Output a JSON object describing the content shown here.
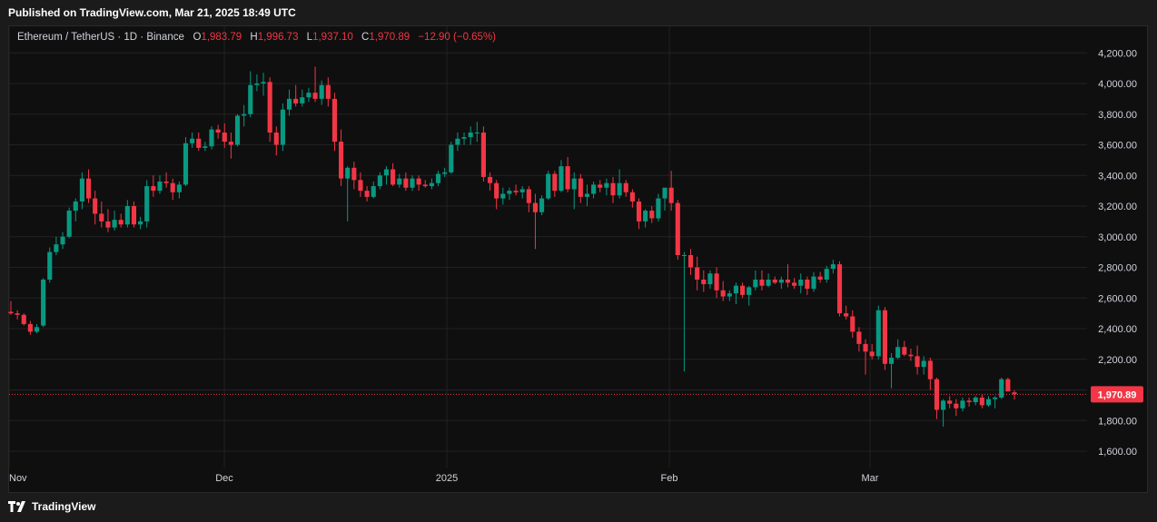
{
  "header": {
    "published": "Published on TradingView.com, Mar 21, 2025 18:49 UTC"
  },
  "legend": {
    "symbol": "Ethereum / TetherUS · 1D · Binance",
    "o_label": "O",
    "o_value": "1,983.79",
    "h_label": "H",
    "h_value": "1,996.73",
    "l_label": "L",
    "l_value": "1,937.10",
    "c_label": "C",
    "c_value": "1,970.89",
    "change": "−12.90 (−0.65%)"
  },
  "footer": {
    "brand": "TradingView"
  },
  "colors": {
    "up": "#089981",
    "down": "#f23645",
    "grid": "#222222",
    "background": "#0f0f0f",
    "price_tag": "#f23645"
  },
  "chart_data": {
    "type": "candlestick",
    "title": "Ethereum / TetherUS · 1D · Binance",
    "y_ticks": [
      "4,200.00",
      "4,000.00",
      "3,800.00",
      "3,600.00",
      "3,400.00",
      "3,200.00",
      "3,000.00",
      "2,800.00",
      "2,600.00",
      "2,400.00",
      "2,200.00",
      "2,000.00",
      "1,800.00",
      "1,600.00"
    ],
    "y_tick_values": [
      4200,
      4000,
      3800,
      3600,
      3400,
      3200,
      3000,
      2800,
      2600,
      2400,
      2200,
      2000,
      1800,
      1600
    ],
    "ylim": [
      1540,
      4300
    ],
    "x_ticks": [
      "Nov",
      "Dec",
      "2025",
      "Feb",
      "Mar"
    ],
    "current_price": 1970.89,
    "current_price_label": "1,970.89",
    "grid": true,
    "candles": [
      {
        "o": 2510,
        "h": 2580,
        "l": 2490,
        "c": 2500
      },
      {
        "o": 2500,
        "h": 2520,
        "l": 2460,
        "c": 2490
      },
      {
        "o": 2490,
        "h": 2500,
        "l": 2420,
        "c": 2430
      },
      {
        "o": 2430,
        "h": 2450,
        "l": 2360,
        "c": 2380
      },
      {
        "o": 2380,
        "h": 2430,
        "l": 2370,
        "c": 2410
      },
      {
        "o": 2420,
        "h": 2730,
        "l": 2410,
        "c": 2720
      },
      {
        "o": 2720,
        "h": 2930,
        "l": 2700,
        "c": 2900
      },
      {
        "o": 2900,
        "h": 3000,
        "l": 2880,
        "c": 2950
      },
      {
        "o": 2950,
        "h": 3030,
        "l": 2920,
        "c": 3000
      },
      {
        "o": 3000,
        "h": 3190,
        "l": 2990,
        "c": 3170
      },
      {
        "o": 3170,
        "h": 3250,
        "l": 3100,
        "c": 3230
      },
      {
        "o": 3230,
        "h": 3420,
        "l": 3180,
        "c": 3380
      },
      {
        "o": 3380,
        "h": 3440,
        "l": 3220,
        "c": 3250
      },
      {
        "o": 3250,
        "h": 3300,
        "l": 3080,
        "c": 3150
      },
      {
        "o": 3150,
        "h": 3230,
        "l": 3060,
        "c": 3100
      },
      {
        "o": 3100,
        "h": 3180,
        "l": 3030,
        "c": 3060
      },
      {
        "o": 3060,
        "h": 3170,
        "l": 3040,
        "c": 3110
      },
      {
        "o": 3110,
        "h": 3150,
        "l": 3060,
        "c": 3080
      },
      {
        "o": 3080,
        "h": 3240,
        "l": 3060,
        "c": 3200
      },
      {
        "o": 3200,
        "h": 3230,
        "l": 3060,
        "c": 3080
      },
      {
        "o": 3080,
        "h": 3130,
        "l": 3050,
        "c": 3100
      },
      {
        "o": 3100,
        "h": 3370,
        "l": 3060,
        "c": 3330
      },
      {
        "o": 3330,
        "h": 3400,
        "l": 3260,
        "c": 3300
      },
      {
        "o": 3300,
        "h": 3400,
        "l": 3280,
        "c": 3360
      },
      {
        "o": 3360,
        "h": 3420,
        "l": 3320,
        "c": 3350
      },
      {
        "o": 3350,
        "h": 3380,
        "l": 3240,
        "c": 3290
      },
      {
        "o": 3290,
        "h": 3360,
        "l": 3250,
        "c": 3340
      },
      {
        "o": 3340,
        "h": 3650,
        "l": 3330,
        "c": 3610
      },
      {
        "o": 3610,
        "h": 3680,
        "l": 3580,
        "c": 3640
      },
      {
        "o": 3640,
        "h": 3680,
        "l": 3560,
        "c": 3580
      },
      {
        "o": 3580,
        "h": 3620,
        "l": 3560,
        "c": 3590
      },
      {
        "o": 3590,
        "h": 3720,
        "l": 3570,
        "c": 3700
      },
      {
        "o": 3700,
        "h": 3730,
        "l": 3640,
        "c": 3680
      },
      {
        "o": 3680,
        "h": 3740,
        "l": 3580,
        "c": 3620
      },
      {
        "o": 3620,
        "h": 3680,
        "l": 3510,
        "c": 3600
      },
      {
        "o": 3600,
        "h": 3800,
        "l": 3590,
        "c": 3790
      },
      {
        "o": 3790,
        "h": 3860,
        "l": 3720,
        "c": 3800
      },
      {
        "o": 3800,
        "h": 4080,
        "l": 3780,
        "c": 3990
      },
      {
        "o": 3990,
        "h": 4060,
        "l": 3950,
        "c": 4000
      },
      {
        "o": 4000,
        "h": 4070,
        "l": 3920,
        "c": 4010
      },
      {
        "o": 4010,
        "h": 4040,
        "l": 3620,
        "c": 3680
      },
      {
        "o": 3680,
        "h": 3720,
        "l": 3530,
        "c": 3600
      },
      {
        "o": 3600,
        "h": 3870,
        "l": 3560,
        "c": 3830
      },
      {
        "o": 3830,
        "h": 3960,
        "l": 3790,
        "c": 3900
      },
      {
        "o": 3900,
        "h": 3990,
        "l": 3850,
        "c": 3870
      },
      {
        "o": 3870,
        "h": 3960,
        "l": 3850,
        "c": 3910
      },
      {
        "o": 3910,
        "h": 3970,
        "l": 3880,
        "c": 3940
      },
      {
        "o": 3940,
        "h": 4110,
        "l": 3880,
        "c": 3900
      },
      {
        "o": 3900,
        "h": 4020,
        "l": 3860,
        "c": 3990
      },
      {
        "o": 3990,
        "h": 4040,
        "l": 3850,
        "c": 3900
      },
      {
        "o": 3900,
        "h": 3940,
        "l": 3560,
        "c": 3620
      },
      {
        "o": 3620,
        "h": 3700,
        "l": 3330,
        "c": 3380
      },
      {
        "o": 3380,
        "h": 3460,
        "l": 3100,
        "c": 3450
      },
      {
        "o": 3450,
        "h": 3490,
        "l": 3310,
        "c": 3370
      },
      {
        "o": 3370,
        "h": 3420,
        "l": 3260,
        "c": 3300
      },
      {
        "o": 3300,
        "h": 3330,
        "l": 3230,
        "c": 3260
      },
      {
        "o": 3260,
        "h": 3360,
        "l": 3250,
        "c": 3330
      },
      {
        "o": 3330,
        "h": 3420,
        "l": 3310,
        "c": 3400
      },
      {
        "o": 3400,
        "h": 3460,
        "l": 3340,
        "c": 3440
      },
      {
        "o": 3440,
        "h": 3480,
        "l": 3330,
        "c": 3340
      },
      {
        "o": 3340,
        "h": 3410,
        "l": 3320,
        "c": 3380
      },
      {
        "o": 3380,
        "h": 3420,
        "l": 3300,
        "c": 3320
      },
      {
        "o": 3320,
        "h": 3400,
        "l": 3300,
        "c": 3380
      },
      {
        "o": 3380,
        "h": 3400,
        "l": 3300,
        "c": 3340
      },
      {
        "o": 3340,
        "h": 3370,
        "l": 3320,
        "c": 3330
      },
      {
        "o": 3330,
        "h": 3380,
        "l": 3310,
        "c": 3350
      },
      {
        "o": 3350,
        "h": 3430,
        "l": 3330,
        "c": 3410
      },
      {
        "o": 3410,
        "h": 3450,
        "l": 3390,
        "c": 3420
      },
      {
        "o": 3420,
        "h": 3620,
        "l": 3410,
        "c": 3600
      },
      {
        "o": 3600,
        "h": 3680,
        "l": 3560,
        "c": 3640
      },
      {
        "o": 3640,
        "h": 3680,
        "l": 3600,
        "c": 3650
      },
      {
        "o": 3650,
        "h": 3720,
        "l": 3600,
        "c": 3680
      },
      {
        "o": 3680,
        "h": 3750,
        "l": 3620,
        "c": 3680
      },
      {
        "o": 3680,
        "h": 3720,
        "l": 3360,
        "c": 3390
      },
      {
        "o": 3390,
        "h": 3420,
        "l": 3300,
        "c": 3350
      },
      {
        "o": 3350,
        "h": 3370,
        "l": 3180,
        "c": 3250
      },
      {
        "o": 3250,
        "h": 3320,
        "l": 3210,
        "c": 3280
      },
      {
        "o": 3280,
        "h": 3320,
        "l": 3240,
        "c": 3300
      },
      {
        "o": 3300,
        "h": 3340,
        "l": 3270,
        "c": 3290
      },
      {
        "o": 3290,
        "h": 3330,
        "l": 3250,
        "c": 3310
      },
      {
        "o": 3310,
        "h": 3330,
        "l": 3160,
        "c": 3220
      },
      {
        "o": 3220,
        "h": 3280,
        "l": 2920,
        "c": 3160
      },
      {
        "o": 3160,
        "h": 3270,
        "l": 3140,
        "c": 3250
      },
      {
        "o": 3250,
        "h": 3430,
        "l": 3240,
        "c": 3410
      },
      {
        "o": 3410,
        "h": 3430,
        "l": 3260,
        "c": 3300
      },
      {
        "o": 3300,
        "h": 3500,
        "l": 3290,
        "c": 3460
      },
      {
        "o": 3460,
        "h": 3520,
        "l": 3290,
        "c": 3310
      },
      {
        "o": 3310,
        "h": 3420,
        "l": 3180,
        "c": 3380
      },
      {
        "o": 3380,
        "h": 3410,
        "l": 3220,
        "c": 3260
      },
      {
        "o": 3260,
        "h": 3340,
        "l": 3200,
        "c": 3280
      },
      {
        "o": 3280,
        "h": 3360,
        "l": 3250,
        "c": 3340
      },
      {
        "o": 3340,
        "h": 3370,
        "l": 3290,
        "c": 3320
      },
      {
        "o": 3320,
        "h": 3380,
        "l": 3270,
        "c": 3350
      },
      {
        "o": 3350,
        "h": 3390,
        "l": 3220,
        "c": 3270
      },
      {
        "o": 3270,
        "h": 3440,
        "l": 3250,
        "c": 3350
      },
      {
        "o": 3350,
        "h": 3370,
        "l": 3260,
        "c": 3290
      },
      {
        "o": 3290,
        "h": 3310,
        "l": 3190,
        "c": 3230
      },
      {
        "o": 3230,
        "h": 3250,
        "l": 3050,
        "c": 3100
      },
      {
        "o": 3100,
        "h": 3180,
        "l": 3060,
        "c": 3170
      },
      {
        "o": 3170,
        "h": 3200,
        "l": 3090,
        "c": 3120
      },
      {
        "o": 3120,
        "h": 3280,
        "l": 3100,
        "c": 3250
      },
      {
        "o": 3250,
        "h": 3310,
        "l": 3170,
        "c": 3320
      },
      {
        "o": 3320,
        "h": 3430,
        "l": 3170,
        "c": 3220
      },
      {
        "o": 3220,
        "h": 3240,
        "l": 2850,
        "c": 2880
      },
      {
        "o": 2880,
        "h": 2900,
        "l": 2120,
        "c": 2880
      },
      {
        "o": 2880,
        "h": 2920,
        "l": 2750,
        "c": 2800
      },
      {
        "o": 2800,
        "h": 2870,
        "l": 2650,
        "c": 2720
      },
      {
        "o": 2720,
        "h": 2780,
        "l": 2640,
        "c": 2690
      },
      {
        "o": 2690,
        "h": 2780,
        "l": 2660,
        "c": 2760
      },
      {
        "o": 2760,
        "h": 2800,
        "l": 2600,
        "c": 2650
      },
      {
        "o": 2650,
        "h": 2710,
        "l": 2580,
        "c": 2610
      },
      {
        "o": 2610,
        "h": 2650,
        "l": 2580,
        "c": 2630
      },
      {
        "o": 2630,
        "h": 2700,
        "l": 2560,
        "c": 2680
      },
      {
        "o": 2680,
        "h": 2700,
        "l": 2600,
        "c": 2620
      },
      {
        "o": 2620,
        "h": 2680,
        "l": 2550,
        "c": 2670
      },
      {
        "o": 2670,
        "h": 2780,
        "l": 2650,
        "c": 2720
      },
      {
        "o": 2720,
        "h": 2780,
        "l": 2650,
        "c": 2680
      },
      {
        "o": 2680,
        "h": 2760,
        "l": 2670,
        "c": 2720
      },
      {
        "o": 2720,
        "h": 2740,
        "l": 2690,
        "c": 2700
      },
      {
        "o": 2700,
        "h": 2740,
        "l": 2660,
        "c": 2720
      },
      {
        "o": 2720,
        "h": 2820,
        "l": 2670,
        "c": 2700
      },
      {
        "o": 2700,
        "h": 2730,
        "l": 2660,
        "c": 2680
      },
      {
        "o": 2680,
        "h": 2760,
        "l": 2630,
        "c": 2720
      },
      {
        "o": 2720,
        "h": 2740,
        "l": 2620,
        "c": 2660
      },
      {
        "o": 2660,
        "h": 2770,
        "l": 2640,
        "c": 2740
      },
      {
        "o": 2740,
        "h": 2770,
        "l": 2700,
        "c": 2720
      },
      {
        "o": 2720,
        "h": 2810,
        "l": 2700,
        "c": 2790
      },
      {
        "o": 2790,
        "h": 2850,
        "l": 2760,
        "c": 2820
      },
      {
        "o": 2820,
        "h": 2840,
        "l": 2480,
        "c": 2500
      },
      {
        "o": 2500,
        "h": 2550,
        "l": 2460,
        "c": 2480
      },
      {
        "o": 2480,
        "h": 2520,
        "l": 2340,
        "c": 2380
      },
      {
        "o": 2380,
        "h": 2410,
        "l": 2250,
        "c": 2300
      },
      {
        "o": 2300,
        "h": 2330,
        "l": 2100,
        "c": 2250
      },
      {
        "o": 2250,
        "h": 2300,
        "l": 2200,
        "c": 2220
      },
      {
        "o": 2220,
        "h": 2550,
        "l": 2200,
        "c": 2520
      },
      {
        "o": 2520,
        "h": 2540,
        "l": 2130,
        "c": 2170
      },
      {
        "o": 2170,
        "h": 2240,
        "l": 2010,
        "c": 2210
      },
      {
        "o": 2210,
        "h": 2330,
        "l": 2200,
        "c": 2280
      },
      {
        "o": 2280,
        "h": 2320,
        "l": 2220,
        "c": 2230
      },
      {
        "o": 2230,
        "h": 2270,
        "l": 2190,
        "c": 2220
      },
      {
        "o": 2220,
        "h": 2290,
        "l": 2100,
        "c": 2150
      },
      {
        "o": 2150,
        "h": 2220,
        "l": 2100,
        "c": 2190
      },
      {
        "o": 2190,
        "h": 2210,
        "l": 2000,
        "c": 2070
      },
      {
        "o": 2070,
        "h": 2080,
        "l": 1810,
        "c": 1870
      },
      {
        "o": 1870,
        "h": 1940,
        "l": 1760,
        "c": 1930
      },
      {
        "o": 1930,
        "h": 1960,
        "l": 1880,
        "c": 1910
      },
      {
        "o": 1910,
        "h": 1940,
        "l": 1830,
        "c": 1880
      },
      {
        "o": 1880,
        "h": 1950,
        "l": 1860,
        "c": 1930
      },
      {
        "o": 1930,
        "h": 1950,
        "l": 1890,
        "c": 1920
      },
      {
        "o": 1920,
        "h": 1960,
        "l": 1900,
        "c": 1950
      },
      {
        "o": 1950,
        "h": 1970,
        "l": 1880,
        "c": 1900
      },
      {
        "o": 1900,
        "h": 1960,
        "l": 1890,
        "c": 1940
      },
      {
        "o": 1940,
        "h": 1960,
        "l": 1880,
        "c": 1950
      },
      {
        "o": 1950,
        "h": 2080,
        "l": 1940,
        "c": 2070
      },
      {
        "o": 2070,
        "h": 2080,
        "l": 1990,
        "c": 1990
      },
      {
        "o": 1983.79,
        "h": 1996.73,
        "l": 1937.1,
        "c": 1970.89
      }
    ]
  }
}
